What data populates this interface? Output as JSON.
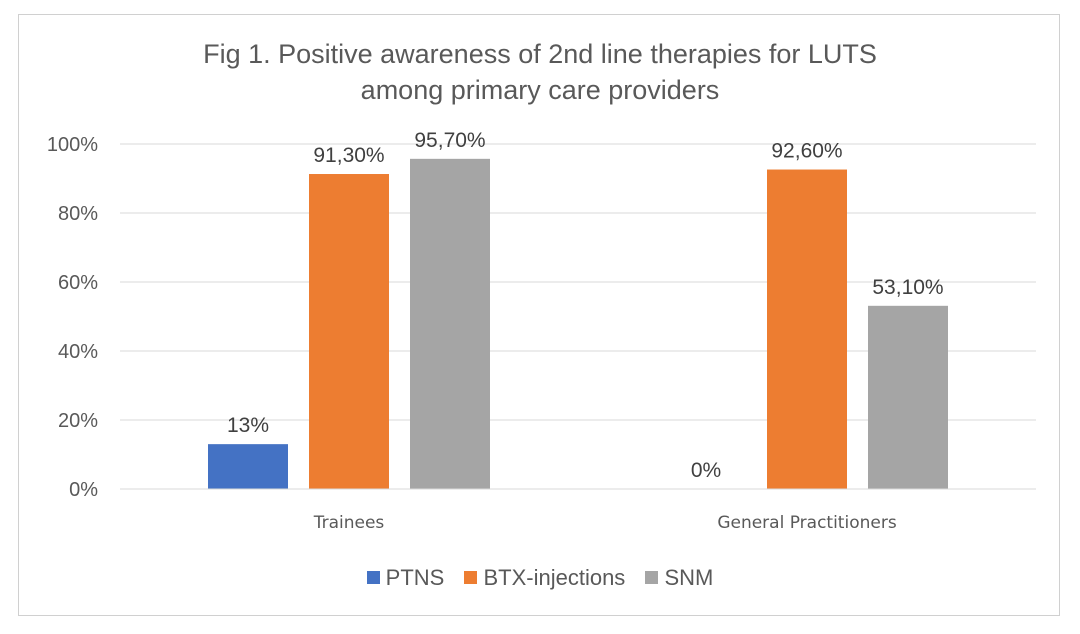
{
  "chart_data": {
    "type": "bar",
    "title_lines": [
      "Fig 1. Positive awareness of 2nd line therapies for LUTS",
      "among primary care providers"
    ],
    "categories": [
      "Trainees",
      "General Practitioners"
    ],
    "series": [
      {
        "name": "PTNS",
        "color": "#4472c4",
        "values": [
          13,
          0
        ],
        "labels": [
          "13%",
          "0%"
        ]
      },
      {
        "name": "BTX-injections",
        "color": "#ed7d31",
        "values": [
          91.3,
          92.6
        ],
        "labels": [
          "91,30%",
          "92,60%"
        ]
      },
      {
        "name": "SNM",
        "color": "#a5a5a5",
        "values": [
          95.7,
          53.1
        ],
        "labels": [
          "95,70%",
          "53,10%"
        ]
      }
    ],
    "ylim": [
      0,
      100
    ],
    "yticks": [
      0,
      20,
      40,
      60,
      80,
      100
    ],
    "ytick_labels": [
      "0%",
      "20%",
      "40%",
      "60%",
      "80%",
      "100%"
    ],
    "grid": true,
    "legend": "bottom"
  }
}
